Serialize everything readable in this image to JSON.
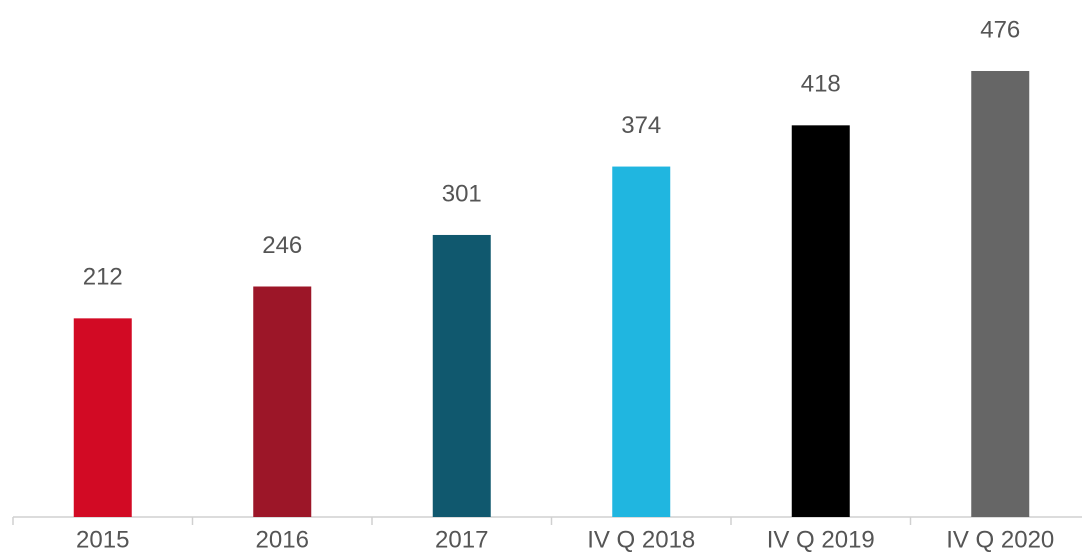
{
  "chart_data": {
    "type": "bar",
    "categories": [
      "2015",
      "2016",
      "2017",
      "IV Q 2018",
      "IV Q 2019",
      "IV Q 2020"
    ],
    "values": [
      212,
      246,
      301,
      374,
      418,
      476
    ],
    "colors": [
      "#d20a24",
      "#9c1628",
      "#10586e",
      "#20b6e0",
      "#000000",
      "#666666"
    ],
    "ylim": [
      0,
      500
    ]
  }
}
